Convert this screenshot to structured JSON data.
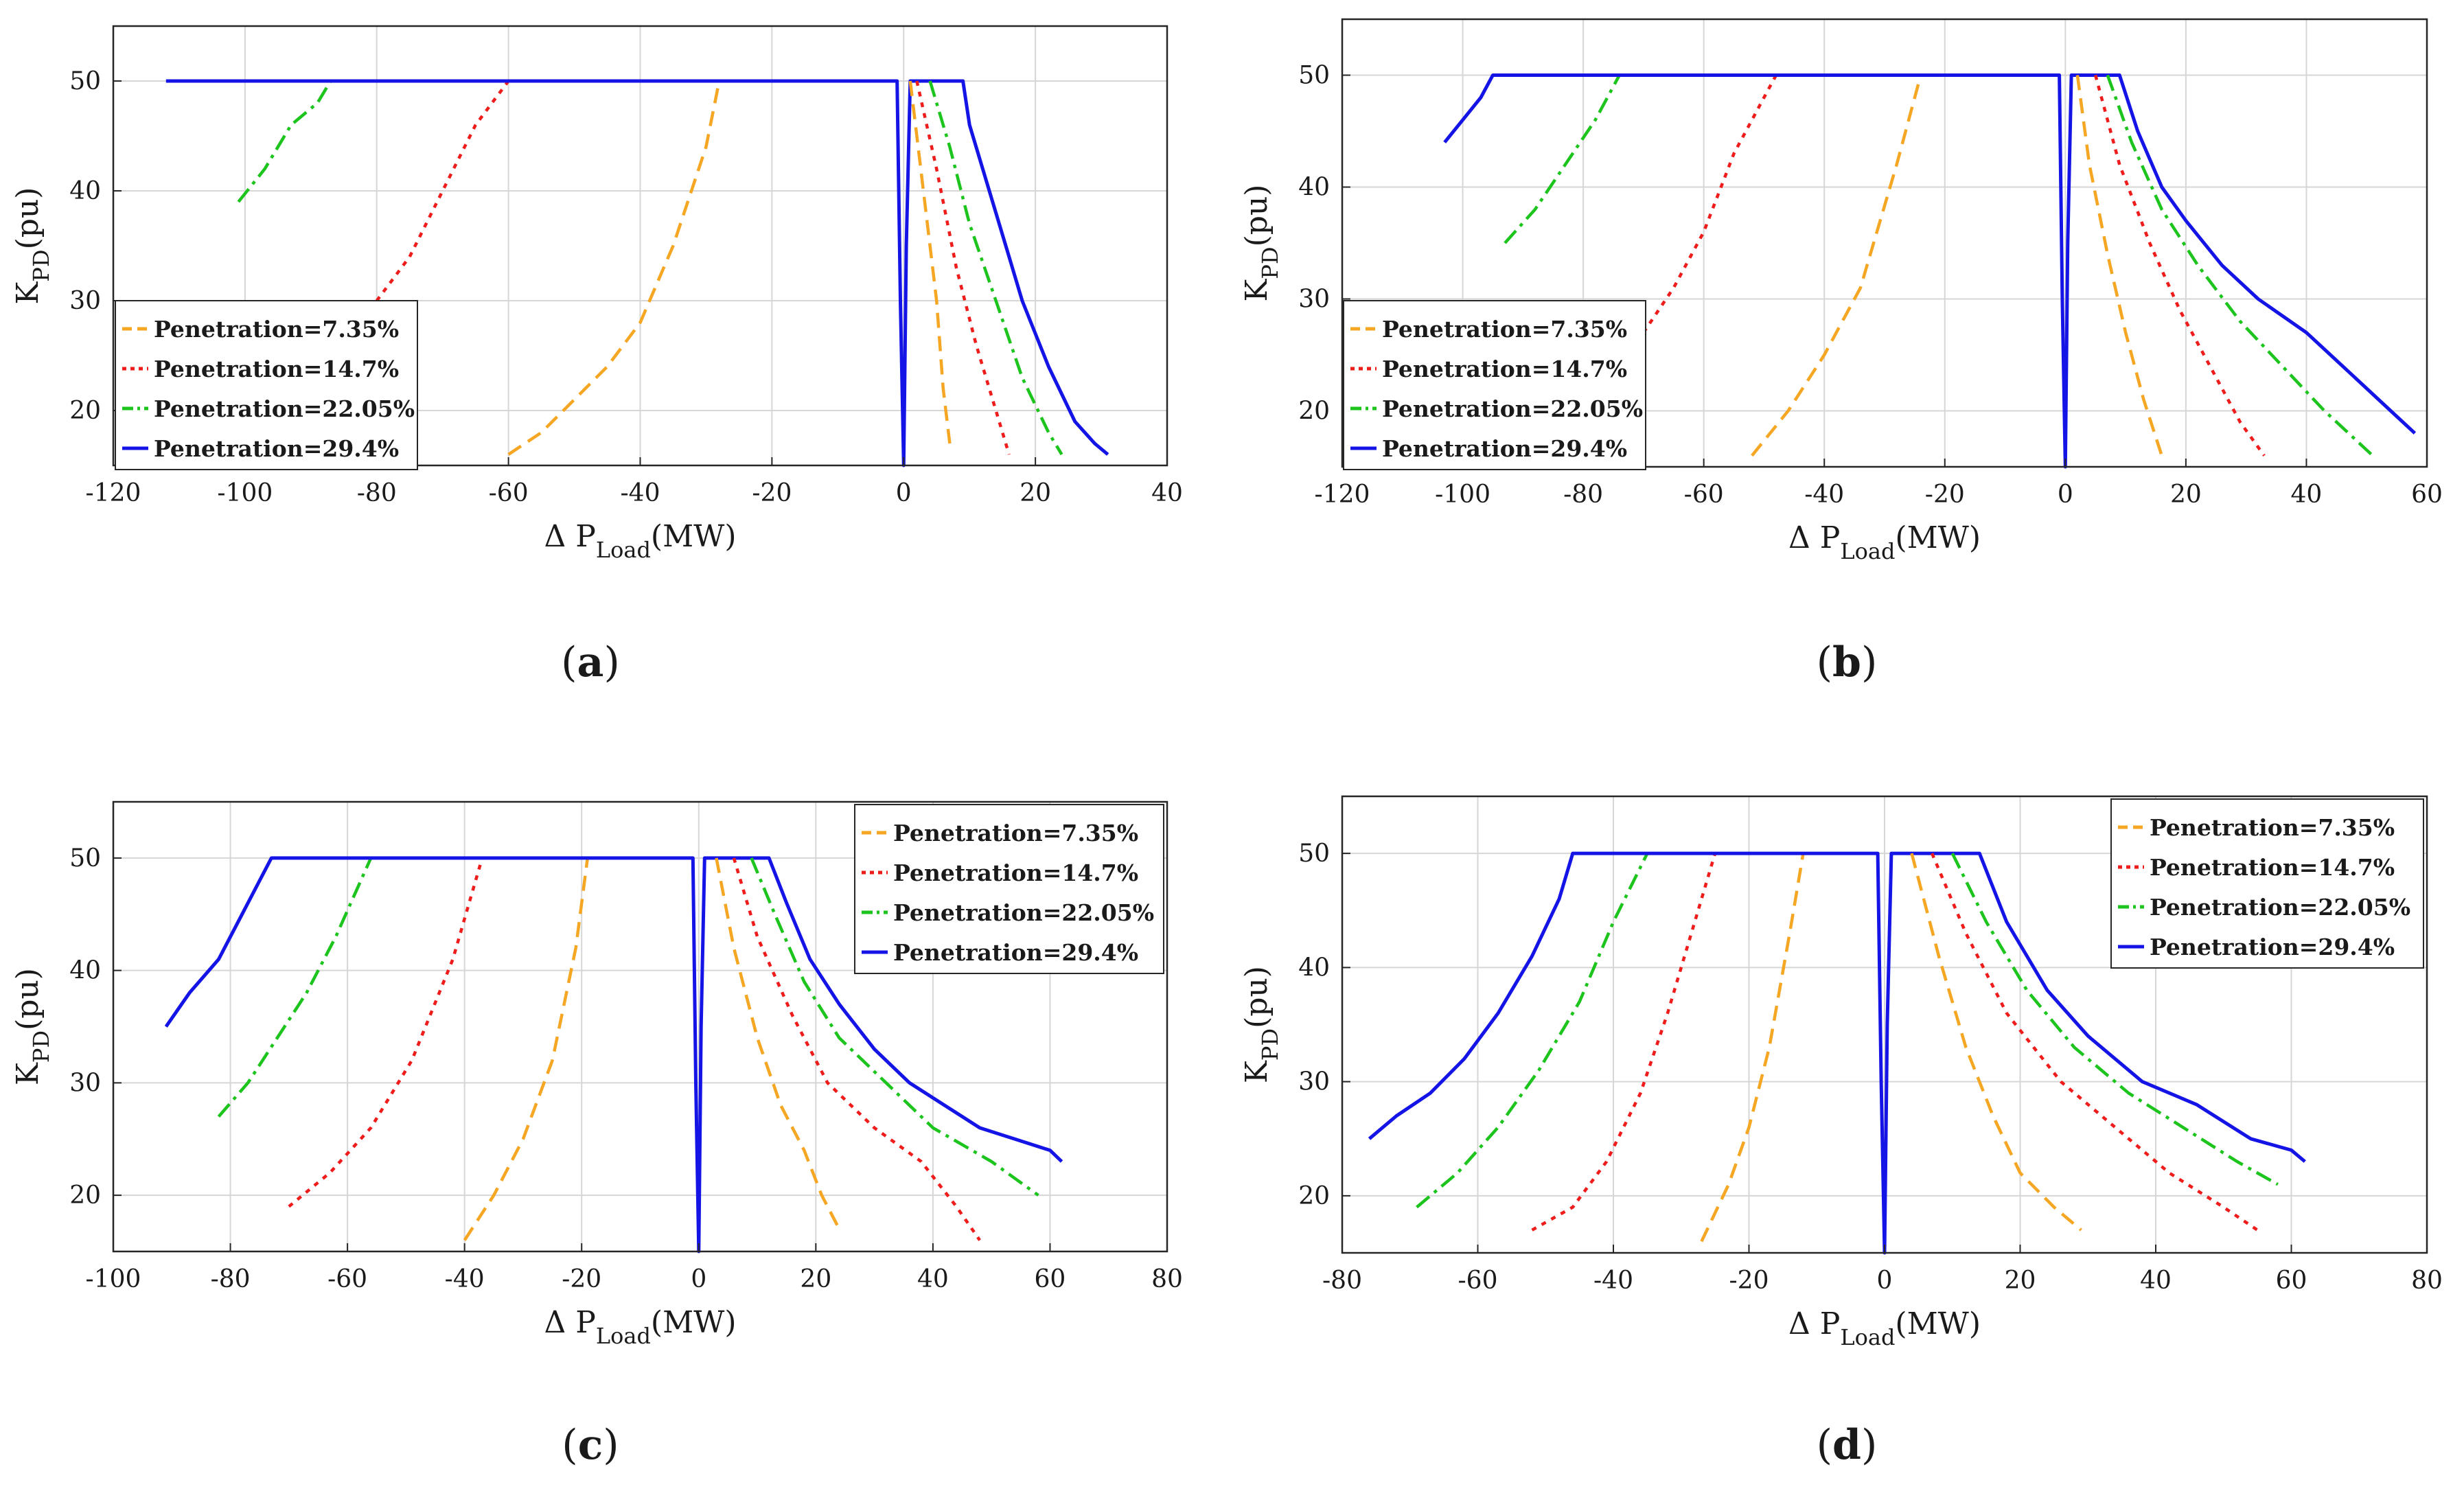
{
  "figure": {
    "legend_entries": [
      "Penetration=7.35%",
      "Penetration=14.7%",
      "Penetration=22.05%",
      "Penetration=29.4%"
    ],
    "series_colors": [
      "#f5a623",
      "#ef1c1c",
      "#1dc41d",
      "#1414e6"
    ]
  },
  "chart_data": [
    {
      "id": "a",
      "type": "line",
      "panel_label": "a",
      "ylabel_main": "K",
      "ylabel_sub": "PD",
      "ylabel_unit": "(pu)",
      "xlabel_main": "Δ P",
      "xlabel_sub": "Load",
      "xlabel_unit": "(MW)",
      "xlim": [
        -120,
        40
      ],
      "ylim": [
        15,
        55
      ],
      "xticks": [
        -120,
        -100,
        -80,
        -60,
        -40,
        -20,
        0,
        20,
        40
      ],
      "yticks": [
        20,
        30,
        40,
        50
      ],
      "legend_position": "bottom-left",
      "grid": true,
      "series": [
        {
          "name": "Penetration=7.35%",
          "x": [
            -60,
            -55,
            -50,
            -45,
            -40,
            -35,
            -30,
            -28
          ],
          "y": [
            16,
            18,
            21,
            24,
            28,
            35,
            44,
            50
          ]
        },
        {
          "name": "Penetration=14.7%",
          "x": [
            -80,
            -75,
            -70,
            -65,
            -60
          ],
          "y": [
            30,
            34,
            40,
            46,
            50
          ]
        },
        {
          "name": "Penetration=22.05%",
          "x": [
            -101,
            -97,
            -93,
            -89,
            -87
          ],
          "y": [
            39,
            42,
            46,
            48,
            50
          ]
        },
        {
          "name": "Penetration=29.4%",
          "x": [
            -112,
            -1,
            -0.5,
            0,
            0.4,
            1,
            9,
            10,
            12,
            14,
            16,
            18,
            20,
            22,
            26,
            29,
            31
          ],
          "y": [
            50,
            50,
            30,
            15,
            35,
            50,
            50,
            46,
            42,
            38,
            34,
            30,
            27,
            24,
            19,
            17,
            16
          ]
        },
        {
          "name": "Penetration=7.35%",
          "x": [
            1,
            3,
            5,
            6,
            7
          ],
          "y": [
            50,
            40,
            30,
            22,
            17
          ]
        },
        {
          "name": "Penetration=14.7%",
          "x": [
            2,
            5,
            8,
            11,
            14,
            16
          ],
          "y": [
            50,
            42,
            33,
            26,
            20,
            16
          ]
        },
        {
          "name": "Penetration=22.05%",
          "x": [
            4,
            7,
            10,
            14,
            18,
            22,
            24
          ],
          "y": [
            50,
            44,
            37,
            30,
            23,
            18,
            16
          ]
        }
      ]
    },
    {
      "id": "b",
      "type": "line",
      "panel_label": "b",
      "ylabel_main": "K",
      "ylabel_sub": "PD",
      "ylabel_unit": "(pu)",
      "xlabel_main": "Δ P",
      "xlabel_sub": "Load",
      "xlabel_unit": "(MW)",
      "xlim": [
        -120,
        60
      ],
      "ylim": [
        15,
        55
      ],
      "xticks": [
        -120,
        -100,
        -80,
        -60,
        -40,
        -20,
        0,
        20,
        40,
        60
      ],
      "yticks": [
        20,
        30,
        40,
        50
      ],
      "legend_position": "bottom-left",
      "grid": true,
      "series": [
        {
          "name": "Penetration=7.35%",
          "x": [
            -52,
            -46,
            -40,
            -34,
            -28,
            -24
          ],
          "y": [
            16,
            20,
            25,
            31,
            42,
            50
          ]
        },
        {
          "name": "Penetration=14.7%",
          "x": [
            -70,
            -65,
            -60,
            -55,
            -50,
            -48
          ],
          "y": [
            27,
            31,
            36,
            43,
            48,
            50
          ]
        },
        {
          "name": "Penetration=22.05%",
          "x": [
            -93,
            -88,
            -83,
            -78,
            -74
          ],
          "y": [
            35,
            38,
            42,
            46,
            50
          ]
        },
        {
          "name": "Penetration=29.4%",
          "x": [
            -103,
            -100,
            -97,
            -95,
            -1,
            -0.5,
            0,
            0.4,
            1,
            9,
            12,
            16,
            20,
            26,
            32,
            40,
            48,
            54,
            58
          ],
          "y": [
            44,
            46,
            48,
            50,
            50,
            30,
            15,
            35,
            50,
            50,
            45,
            40,
            37,
            33,
            30,
            27,
            23,
            20,
            18
          ]
        },
        {
          "name": "Penetration=7.35%",
          "x": [
            2,
            4,
            7,
            10,
            13,
            16
          ],
          "y": [
            50,
            42,
            34,
            27,
            21,
            16
          ]
        },
        {
          "name": "Penetration=14.7%",
          "x": [
            5,
            9,
            14,
            19,
            24,
            29,
            33
          ],
          "y": [
            50,
            42,
            35,
            29,
            24,
            19,
            16
          ]
        },
        {
          "name": "Penetration=22.05%",
          "x": [
            7,
            11,
            16,
            22,
            29,
            36,
            43,
            51
          ],
          "y": [
            50,
            44,
            38,
            33,
            28,
            24,
            20,
            16
          ]
        }
      ]
    },
    {
      "id": "c",
      "type": "line",
      "panel_label": "c",
      "ylabel_main": "K",
      "ylabel_sub": "PD",
      "ylabel_unit": "(pu)",
      "xlabel_main": "Δ P",
      "xlabel_sub": "Load",
      "xlabel_unit": "(MW)",
      "xlim": [
        -100,
        80
      ],
      "ylim": [
        15,
        55
      ],
      "xticks": [
        -100,
        -80,
        -60,
        -40,
        -20,
        0,
        20,
        40,
        60,
        80
      ],
      "yticks": [
        20,
        30,
        40,
        50
      ],
      "legend_position": "top-right",
      "grid": true,
      "series": [
        {
          "name": "Penetration=7.35%",
          "x": [
            -40,
            -35,
            -30,
            -25,
            -21,
            -19
          ],
          "y": [
            16,
            20,
            25,
            32,
            42,
            50
          ]
        },
        {
          "name": "Penetration=14.7%",
          "x": [
            -70,
            -63,
            -56,
            -49,
            -42,
            -37
          ],
          "y": [
            19,
            22,
            26,
            32,
            41,
            50
          ]
        },
        {
          "name": "Penetration=22.05%",
          "x": [
            -82,
            -77,
            -72,
            -67,
            -62,
            -56
          ],
          "y": [
            27,
            30,
            34,
            38,
            43,
            50
          ]
        },
        {
          "name": "Penetration=29.4%",
          "x": [
            -91,
            -87,
            -82,
            -78,
            -75,
            -73,
            -1,
            -0.5,
            0,
            0.4,
            1,
            12,
            15,
            19,
            24,
            30,
            36,
            42,
            48,
            54,
            60,
            62
          ],
          "y": [
            35,
            38,
            41,
            45,
            48,
            50,
            50,
            30,
            15,
            35,
            50,
            50,
            46,
            41,
            37,
            33,
            30,
            28,
            26,
            25,
            24,
            23
          ]
        },
        {
          "name": "Penetration=7.35%",
          "x": [
            3,
            6,
            10,
            14,
            18,
            21,
            24
          ],
          "y": [
            50,
            42,
            34,
            28,
            24,
            20,
            17
          ]
        },
        {
          "name": "Penetration=14.7%",
          "x": [
            6,
            10,
            16,
            22,
            30,
            38,
            44,
            48
          ],
          "y": [
            50,
            43,
            36,
            30,
            26,
            23,
            19,
            16
          ]
        },
        {
          "name": "Penetration=22.05%",
          "x": [
            9,
            13,
            18,
            24,
            32,
            40,
            50,
            58
          ],
          "y": [
            50,
            45,
            39,
            34,
            30,
            26,
            23,
            20
          ]
        }
      ]
    },
    {
      "id": "d",
      "type": "line",
      "panel_label": "d",
      "ylabel_main": "K",
      "ylabel_sub": "PD",
      "ylabel_unit": "(pu)",
      "xlabel_main": "Δ P",
      "xlabel_sub": "Load",
      "xlabel_unit": "(MW)",
      "xlim": [
        -80,
        80
      ],
      "ylim": [
        15,
        55
      ],
      "xticks": [
        -80,
        -60,
        -40,
        -20,
        0,
        20,
        40,
        60,
        80
      ],
      "yticks": [
        20,
        30,
        40,
        50
      ],
      "legend_position": "top-right",
      "grid": true,
      "series": [
        {
          "name": "Penetration=7.35%",
          "x": [
            -27,
            -23,
            -20,
            -17,
            -14,
            -12
          ],
          "y": [
            16,
            21,
            26,
            33,
            43,
            50
          ]
        },
        {
          "name": "Penetration=14.7%",
          "x": [
            -52,
            -46,
            -41,
            -36,
            -32,
            -28,
            -25
          ],
          "y": [
            17,
            19,
            23,
            29,
            36,
            44,
            50
          ]
        },
        {
          "name": "Penetration=22.05%",
          "x": [
            -69,
            -63,
            -57,
            -51,
            -45,
            -40,
            -35
          ],
          "y": [
            19,
            22,
            26,
            31,
            37,
            44,
            50
          ]
        },
        {
          "name": "Penetration=29.4%",
          "x": [
            -76,
            -72,
            -67,
            -62,
            -57,
            -52,
            -48,
            -46,
            -1,
            -0.5,
            0,
            0.4,
            1,
            14,
            18,
            24,
            30,
            38,
            46,
            54,
            60,
            62
          ],
          "y": [
            25,
            27,
            29,
            32,
            36,
            41,
            46,
            50,
            50,
            30,
            15,
            35,
            50,
            50,
            44,
            38,
            34,
            30,
            28,
            25,
            24,
            23
          ]
        },
        {
          "name": "Penetration=7.35%",
          "x": [
            4,
            8,
            12,
            16,
            20,
            25,
            29
          ],
          "y": [
            50,
            41,
            33,
            27,
            22,
            19,
            17
          ]
        },
        {
          "name": "Penetration=14.7%",
          "x": [
            7,
            12,
            18,
            26,
            34,
            42,
            50,
            55
          ],
          "y": [
            50,
            43,
            36,
            30,
            26,
            22,
            19,
            17
          ]
        },
        {
          "name": "Penetration=22.05%",
          "x": [
            10,
            15,
            21,
            28,
            36,
            44,
            52,
            58
          ],
          "y": [
            50,
            44,
            38,
            33,
            29,
            26,
            23,
            21
          ]
        }
      ]
    }
  ]
}
